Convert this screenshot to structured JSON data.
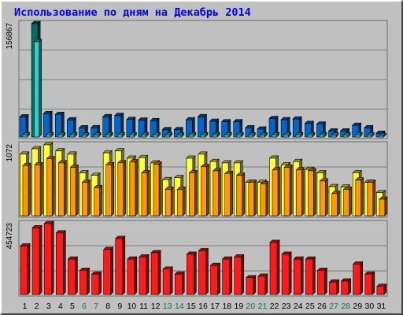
{
  "title": "Использование по дням на Декабрь 2014",
  "colors": {
    "hits_top": "#006e5e",
    "hits_face": "#0066cc",
    "files_face": "#33cccc",
    "sites_face": "#ffff33",
    "visits_face": "#ff9900",
    "kbytes_face": "#ff1a1a",
    "weekday_label": "#000000",
    "weekend_label": "#008040"
  },
  "chart_data": [
    {
      "type": "bar",
      "panel": "top",
      "max_label": "156867",
      "ylim": [
        0,
        156867
      ],
      "categories": [
        "1",
        "2",
        "3",
        "4",
        "5",
        "6",
        "7",
        "8",
        "9",
        "10",
        "11",
        "12",
        "13",
        "14",
        "15",
        "16",
        "17",
        "18",
        "19",
        "20",
        "21",
        "22",
        "23",
        "24",
        "25",
        "26",
        "27",
        "28",
        "29",
        "30",
        "31"
      ],
      "weekend_days": [
        "6",
        "7",
        "13",
        "14",
        "20",
        "21",
        "27",
        "28"
      ],
      "series": [
        {
          "key": "hits",
          "values": [
            27800,
            156867,
            32400,
            31300,
            23800,
            12700,
            12700,
            28100,
            29700,
            24200,
            23300,
            22500,
            10100,
            10100,
            23800,
            28100,
            21800,
            21100,
            21100,
            12700,
            11000,
            25600,
            23900,
            24900,
            18700,
            17800,
            8400,
            8400,
            16100,
            12700,
            5100
          ]
        },
        {
          "key": "files",
          "values": [
            3000,
            132000,
            3000,
            3000,
            3000,
            2500,
            2500,
            3000,
            3000,
            3000,
            3000,
            3000,
            2500,
            2500,
            3000,
            3000,
            3000,
            3000,
            3000,
            2500,
            2500,
            3000,
            3000,
            3000,
            3000,
            3000,
            2500,
            2500,
            3000,
            2500,
            2000
          ]
        }
      ]
    },
    {
      "type": "bar",
      "panel": "middle",
      "max_label": "1072",
      "ylim": [
        0,
        1072
      ],
      "categories": [
        "1",
        "2",
        "3",
        "4",
        "5",
        "6",
        "7",
        "8",
        "9",
        "10",
        "11",
        "12",
        "13",
        "14",
        "15",
        "16",
        "17",
        "18",
        "19",
        "20",
        "21",
        "22",
        "23",
        "24",
        "25",
        "26",
        "27",
        "28",
        "29",
        "30",
        "31"
      ],
      "series": [
        {
          "key": "sites",
          "values": [
            931,
            1013,
            1072,
            980,
            931,
            649,
            612,
            951,
            980,
            870,
            880,
            799,
            546,
            577,
            870,
            931,
            820,
            799,
            799,
            505,
            505,
            870,
            770,
            820,
            700,
            649,
            440,
            434,
            649,
            505,
            350
          ]
        },
        {
          "key": "visits",
          "values": [
            760,
            770,
            862,
            800,
            732,
            505,
            425,
            770,
            800,
            815,
            649,
            780,
            400,
            400,
            649,
            742,
            680,
            640,
            612,
            505,
            480,
            693,
            732,
            693,
            680,
            525,
            336,
            400,
            540,
            505,
            250
          ]
        }
      ]
    },
    {
      "type": "bar",
      "panel": "bottom",
      "max_label": "454723",
      "ylim": [
        0,
        454723
      ],
      "categories": [
        "1",
        "2",
        "3",
        "4",
        "5",
        "6",
        "7",
        "8",
        "9",
        "10",
        "11",
        "12",
        "13",
        "14",
        "15",
        "16",
        "17",
        "18",
        "19",
        "20",
        "21",
        "22",
        "23",
        "24",
        "25",
        "26",
        "27",
        "28",
        "29",
        "30",
        "31"
      ],
      "series": [
        {
          "key": "kbytes",
          "values": [
            311000,
            428000,
            454723,
            395000,
            227000,
            155000,
            131000,
            289000,
            359000,
            227000,
            241000,
            268000,
            163000,
            131000,
            258000,
            281000,
            186000,
            227000,
            241000,
            108000,
            117000,
            334000,
            258000,
            227000,
            227000,
            155000,
            80000,
            86000,
            195000,
            131000,
            52000
          ]
        }
      ]
    }
  ]
}
